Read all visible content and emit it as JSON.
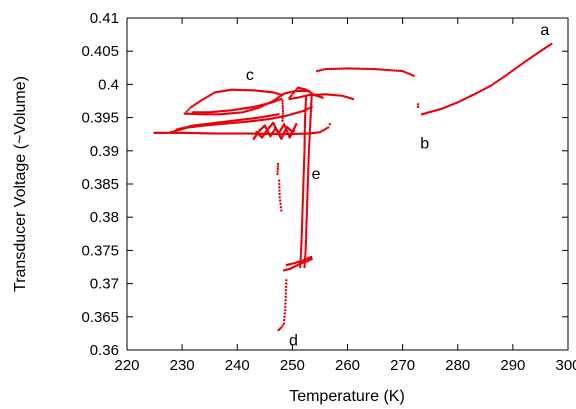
{
  "chart_data": {
    "type": "scatter",
    "xlabel": "Temperature (K)",
    "ylabel": "Transducer Voltage (~Volume)",
    "xlim": [
      220,
      300
    ],
    "ylim": [
      0.36,
      0.41
    ],
    "xticks": [
      "220",
      "230",
      "240",
      "250",
      "260",
      "270",
      "280",
      "290",
      "300"
    ],
    "yticks": [
      "0.36",
      "0.365",
      "0.37",
      "0.375",
      "0.38",
      "0.385",
      "0.39",
      "0.395",
      "0.4",
      "0.405",
      "0.41"
    ],
    "grid": false,
    "legend": "none",
    "marker_color": "#e8000b",
    "annotations": [
      {
        "text": "a",
        "x": 295.8,
        "y": 0.4082
      },
      {
        "text": "b",
        "x": 274.0,
        "y": 0.3911
      },
      {
        "text": "c",
        "x": 242.3,
        "y": 0.4014
      },
      {
        "text": "d",
        "x": 250.2,
        "y": 0.3614
      },
      {
        "text": "e",
        "x": 254.3,
        "y": 0.3865
      }
    ],
    "series": [
      {
        "segments": [
          {
            "points": [
              [
                297.0,
                0.4061
              ],
              [
                295.0,
                0.405
              ],
              [
                292.0,
                0.4033
              ],
              [
                289.0,
                0.4015
              ],
              [
                286.0,
                0.3998
              ],
              [
                283.0,
                0.3985
              ],
              [
                280.0,
                0.3973
              ],
              [
                277.0,
                0.3963
              ],
              [
                273.5,
                0.3955
              ]
            ],
            "step": 0.3
          },
          {
            "points": [
              [
                272.8,
                0.397
              ],
              [
                272.8,
                0.3966
              ]
            ],
            "step": 0.1
          },
          {
            "points": [
              [
                272.0,
                0.4013
              ],
              [
                270.0,
                0.402
              ],
              [
                265.0,
                0.4023
              ],
              [
                260.0,
                0.4024
              ],
              [
                256.0,
                0.4023
              ],
              [
                254.5,
                0.402
              ]
            ],
            "step": 0.35
          },
          {
            "points": [
              [
                261.0,
                0.3978
              ],
              [
                259.0,
                0.3983
              ],
              [
                256.0,
                0.3985
              ],
              [
                253.0,
                0.3984
              ],
              [
                251.0,
                0.398
              ],
              [
                249.5,
                0.3978
              ]
            ],
            "step": 0.3
          },
          {
            "points": [
              [
                249.5,
                0.398
              ],
              [
                251.0,
                0.3995
              ],
              [
                252.5,
                0.3992
              ],
              [
                254.0,
                0.3984
              ],
              [
                255.5,
                0.398
              ]
            ],
            "step": 0.25
          },
          {
            "points": [
              [
                252.5,
                0.3982
              ],
              [
                252.3,
                0.395
              ],
              [
                252.2,
                0.39
              ],
              [
                252.0,
                0.385
              ],
              [
                251.8,
                0.38
              ],
              [
                251.6,
                0.375
              ],
              [
                251.4,
                0.3725
              ]
            ],
            "step": 0.0003
          },
          {
            "points": [
              [
                253.5,
                0.3982
              ],
              [
                253.3,
                0.395
              ],
              [
                253.0,
                0.39
              ],
              [
                252.8,
                0.385
              ],
              [
                252.6,
                0.38
              ],
              [
                252.4,
                0.375
              ],
              [
                252.2,
                0.3725
              ]
            ],
            "step": 0.0003
          },
          {
            "points": [
              [
                248.5,
                0.372
              ],
              [
                249.5,
                0.3722
              ],
              [
                250.5,
                0.3726
              ],
              [
                251.5,
                0.373
              ],
              [
                252.5,
                0.3733
              ],
              [
                253.5,
                0.3737
              ]
            ],
            "step": 0.25
          },
          {
            "points": [
              [
                249.0,
                0.3728
              ],
              [
                250.5,
                0.3731
              ],
              [
                252.0,
                0.3735
              ],
              [
                253.4,
                0.374
              ]
            ],
            "step": 0.3
          },
          {
            "points": [
              [
                248.9,
                0.3705
              ],
              [
                248.8,
                0.368
              ],
              [
                248.7,
                0.366
              ],
              [
                248.5,
                0.3645
              ]
            ],
            "step": 0.0005
          },
          {
            "points": [
              [
                248.5,
                0.364
              ],
              [
                248.0,
                0.3634
              ],
              [
                247.5,
                0.363
              ]
            ],
            "step": 0.25
          },
          {
            "points": [
              [
                253.0,
                0.399
              ],
              [
                250.5,
                0.399
              ],
              [
                248.5,
                0.3986
              ],
              [
                246.5,
                0.3975
              ],
              [
                244.0,
                0.3965
              ],
              [
                241.0,
                0.3958
              ],
              [
                237.0,
                0.3955
              ],
              [
                233.0,
                0.3955
              ],
              [
                230.5,
                0.3956
              ]
            ],
            "step": 0.3
          },
          {
            "points": [
              [
                230.5,
                0.3956
              ],
              [
                231.5,
                0.3965
              ],
              [
                233.5,
                0.3976
              ],
              [
                236.0,
                0.3988
              ],
              [
                239.0,
                0.3992
              ],
              [
                243.0,
                0.3991
              ],
              [
                246.5,
                0.3988
              ],
              [
                248.2,
                0.3984
              ],
              [
                248.0,
                0.3978
              ],
              [
                246.0,
                0.3972
              ],
              [
                243.0,
                0.3966
              ],
              [
                239.0,
                0.3961
              ],
              [
                235.0,
                0.3958
              ],
              [
                232.0,
                0.3958
              ]
            ],
            "step": 0.3
          },
          {
            "points": [
              [
                228.0,
                0.3928
              ],
              [
                231.0,
                0.3935
              ],
              [
                234.0,
                0.3938
              ],
              [
                238.0,
                0.3941
              ],
              [
                242.0,
                0.3944
              ],
              [
                246.0,
                0.3948
              ],
              [
                249.0,
                0.3953
              ],
              [
                252.0,
                0.396
              ],
              [
                253.5,
                0.3966
              ]
            ],
            "step": 0.3
          },
          {
            "points": [
              [
                229.0,
                0.3932
              ],
              [
                232.0,
                0.3938
              ],
              [
                236.0,
                0.3942
              ],
              [
                240.0,
                0.3946
              ],
              [
                244.0,
                0.395
              ],
              [
                247.5,
                0.3955
              ]
            ],
            "step": 0.3
          },
          {
            "points": [
              [
                225.0,
                0.3927
              ],
              [
                230.0,
                0.3927
              ],
              [
                236.0,
                0.3926
              ],
              [
                242.0,
                0.3926
              ],
              [
                248.0,
                0.3925
              ],
              [
                253.0,
                0.3926
              ],
              [
                255.0,
                0.3928
              ],
              [
                256.5,
                0.3935
              ],
              [
                256.8,
                0.394
              ]
            ],
            "step": 0.3
          },
          {
            "points": [
              [
                243.0,
                0.3918
              ],
              [
                244.0,
                0.393
              ],
              [
                245.0,
                0.3938
              ],
              [
                246.0,
                0.3922
              ],
              [
                247.0,
                0.3934
              ],
              [
                248.0,
                0.3918
              ],
              [
                249.0,
                0.3936
              ],
              [
                250.0,
                0.3928
              ],
              [
                250.7,
                0.394
              ]
            ],
            "step": 0.12
          },
          {
            "points": [
              [
                243.5,
                0.3928
              ],
              [
                244.5,
                0.392
              ],
              [
                245.5,
                0.3932
              ],
              [
                246.5,
                0.3942
              ],
              [
                247.5,
                0.3926
              ],
              [
                248.5,
                0.394
              ],
              [
                249.5,
                0.392
              ],
              [
                250.3,
                0.3931
              ]
            ],
            "step": 0.12
          },
          {
            "points": [
              [
                248.2,
                0.3975
              ],
              [
                248.3,
                0.396
              ],
              [
                248.2,
                0.3945
              ]
            ],
            "step": 0.0004
          },
          {
            "points": [
              [
                247.4,
                0.388
              ],
              [
                247.3,
                0.3865
              ]
            ],
            "step": 0.0004
          },
          {
            "points": [
              [
                247.6,
                0.3855
              ],
              [
                247.7,
                0.383
              ],
              [
                248.0,
                0.381
              ]
            ],
            "step": 0.0005
          }
        ]
      }
    ]
  }
}
